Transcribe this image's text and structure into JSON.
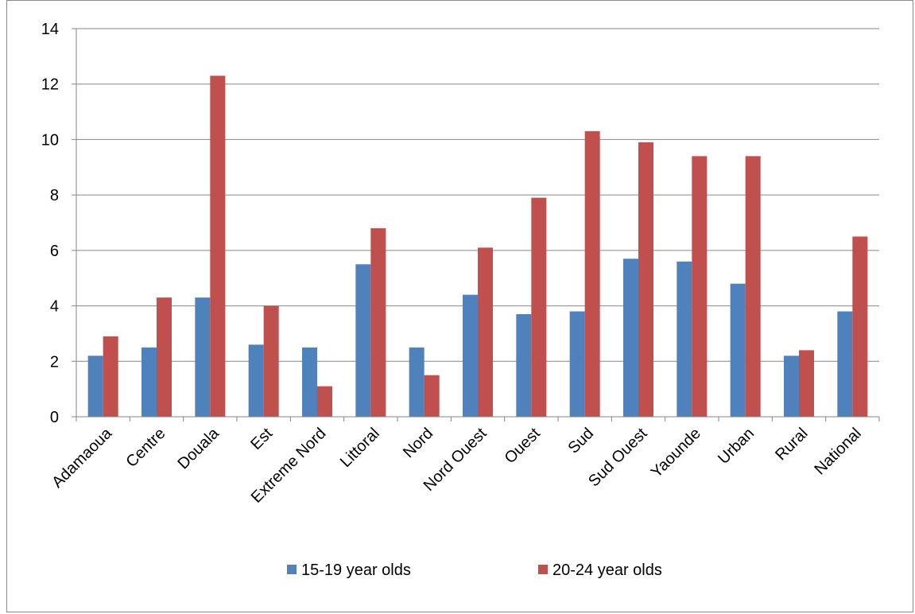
{
  "chart_data": {
    "type": "bar",
    "categories": [
      "Adamaoua",
      "Centre",
      "Douala",
      "Est",
      "Extreme Nord",
      "Littoral",
      "Nord",
      "Nord Ouest",
      "Ouest",
      "Sud",
      "Sud Ouest",
      "Yaounde",
      "Urban",
      "Rural",
      "National"
    ],
    "series": [
      {
        "name": "15-19 year olds",
        "color": "#4f81bd",
        "values": [
          2.2,
          2.5,
          4.3,
          2.6,
          2.5,
          5.5,
          2.5,
          4.4,
          3.7,
          3.8,
          5.7,
          5.6,
          4.8,
          2.2,
          3.8
        ]
      },
      {
        "name": "20-24 year olds",
        "color": "#c0504d",
        "values": [
          2.9,
          4.3,
          12.3,
          4.0,
          1.1,
          6.8,
          1.5,
          6.1,
          7.9,
          10.3,
          9.9,
          9.4,
          9.4,
          2.4,
          6.5
        ]
      }
    ],
    "ylim": [
      0,
      14
    ],
    "yticks": [
      0,
      2,
      4,
      6,
      8,
      10,
      12,
      14
    ],
    "grid": true,
    "legend_position": "bottom"
  }
}
